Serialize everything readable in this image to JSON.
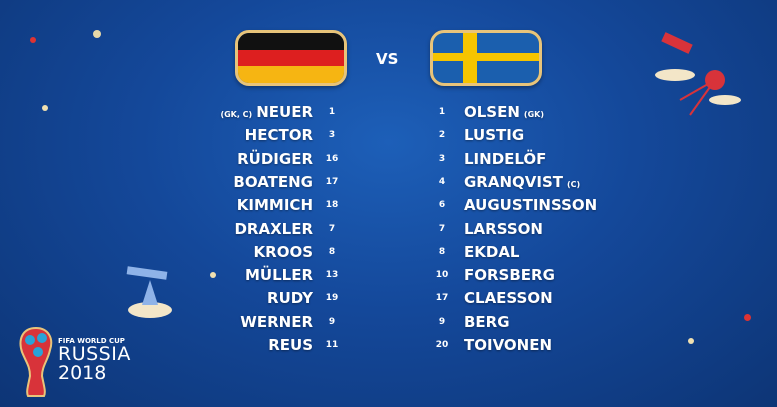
{
  "match": {
    "vs_label": "VS",
    "home_team": "Germany",
    "away_team": "Sweden"
  },
  "colors": {
    "background": "#14489a",
    "text": "#ffffff",
    "flag_border": "#e8c47a"
  },
  "home_lineup": [
    {
      "name": "NEUER",
      "number": "1",
      "tag": "(GK, C)"
    },
    {
      "name": "HECTOR",
      "number": "3"
    },
    {
      "name": "RÜDIGER",
      "number": "16"
    },
    {
      "name": "BOATENG",
      "number": "17"
    },
    {
      "name": "KIMMICH",
      "number": "18"
    },
    {
      "name": "DRAXLER",
      "number": "7"
    },
    {
      "name": "KROOS",
      "number": "8"
    },
    {
      "name": "MÜLLER",
      "number": "13"
    },
    {
      "name": "RUDY",
      "number": "19"
    },
    {
      "name": "WERNER",
      "number": "9"
    },
    {
      "name": "REUS",
      "number": "11"
    }
  ],
  "away_lineup": [
    {
      "name": "OLSEN",
      "number": "1",
      "tag": "(GK)"
    },
    {
      "name": "LUSTIG",
      "number": "2"
    },
    {
      "name": "LINDELÖF",
      "number": "3"
    },
    {
      "name": "GRANQVIST",
      "number": "4",
      "tag": "(C)"
    },
    {
      "name": "AUGUSTINSSON",
      "number": "6"
    },
    {
      "name": "LARSSON",
      "number": "7"
    },
    {
      "name": "EKDAL",
      "number": "8"
    },
    {
      "name": "FORSBERG",
      "number": "10"
    },
    {
      "name": "CLAESSON",
      "number": "17"
    },
    {
      "name": "BERG",
      "number": "9"
    },
    {
      "name": "TOIVONEN",
      "number": "20"
    }
  ],
  "logo": {
    "line1": "FIFA WORLD CUP",
    "line2": "RUSSIA",
    "line3": "2018"
  }
}
